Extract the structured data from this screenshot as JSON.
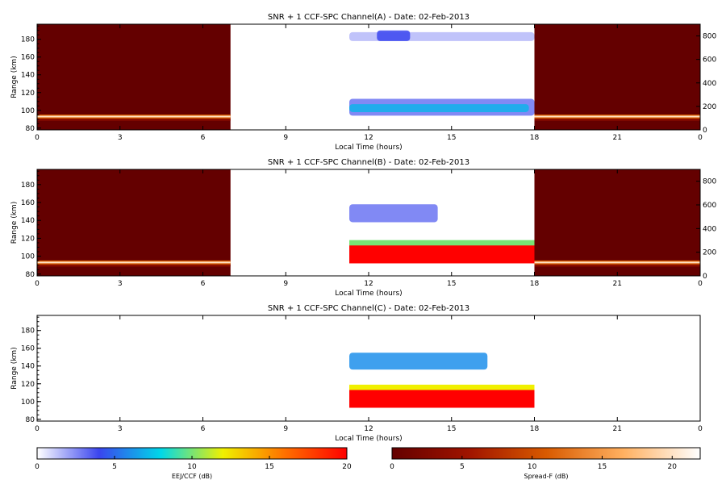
{
  "chart_data": [
    {
      "type": "heatmap",
      "title": "SNR + 1 CCF-SPC Channel(A) - Date: 02-Feb-2013",
      "xlabel": "Local Time (hours)",
      "ylabel": "Range (km)",
      "xlim": [
        0,
        24
      ],
      "ylim": [
        78,
        197
      ],
      "x_ticks": [
        "0",
        "3",
        "6",
        "9",
        "12",
        "15",
        "18",
        "21",
        "0"
      ],
      "y_ticks": [
        80,
        100,
        120,
        140,
        160,
        180
      ],
      "y2lim": [
        0,
        900
      ],
      "y2_ticks": [
        0,
        200,
        400,
        600,
        800
      ],
      "night_spreadF": {
        "colormap": "Spread-F",
        "background_db": 0,
        "bright_layer_km": 93,
        "segments_hours": [
          [
            0,
            7
          ],
          [
            18,
            24
          ]
        ]
      },
      "day_eej": {
        "colormap": "EEJ/CCF",
        "hours": [
          11.3,
          18
        ],
        "features": [
          {
            "name": "upper-echo",
            "x": [
              11.3,
              18
            ],
            "range_km": [
              178,
              188
            ],
            "db": 1.5
          },
          {
            "name": "upper-echo-peak",
            "x": [
              12.3,
              13.5
            ],
            "range_km": [
              178,
              190
            ],
            "db": 4
          },
          {
            "name": "lower-layer",
            "x": [
              11.3,
              18
            ],
            "range_km": [
              94,
              113
            ],
            "db": 3
          },
          {
            "name": "lower-layer-core",
            "x": [
              11.3,
              17.8
            ],
            "range_km": [
              98,
              107
            ],
            "db": 7
          }
        ]
      },
      "no_data_hours": [
        7,
        11.3
      ]
    },
    {
      "type": "heatmap",
      "title": "SNR + 1 CCF-SPC Channel(B) - Date: 02-Feb-2013",
      "xlabel": "Local Time (hours)",
      "ylabel": "Range (km)",
      "xlim": [
        0,
        24
      ],
      "ylim": [
        78,
        197
      ],
      "x_ticks": [
        "0",
        "3",
        "6",
        "9",
        "12",
        "15",
        "18",
        "21",
        "0"
      ],
      "y_ticks": [
        80,
        100,
        120,
        140,
        160,
        180
      ],
      "y2lim": [
        0,
        900
      ],
      "y2_ticks": [
        0,
        200,
        400,
        600,
        800
      ],
      "night_spreadF": {
        "colormap": "Spread-F",
        "background_db": 0,
        "bright_layer_km": 93,
        "segments_hours": [
          [
            0,
            7
          ],
          [
            18,
            24
          ]
        ]
      },
      "day_eej": {
        "colormap": "EEJ/CCF",
        "hours": [
          11.3,
          18
        ],
        "features": [
          {
            "name": "upper-echo",
            "x": [
              11.3,
              14.5
            ],
            "range_km": [
              138,
              158
            ],
            "db": 3
          },
          {
            "name": "lower-layer",
            "x": [
              11.3,
              18
            ],
            "range_km": [
              92,
              115
            ],
            "db": 20
          },
          {
            "name": "layer-edge",
            "x": [
              11.3,
              18
            ],
            "range_km": [
              112,
              118
            ],
            "db": 10
          }
        ]
      },
      "no_data_hours": [
        7,
        11.3
      ]
    },
    {
      "type": "heatmap",
      "title": "SNR + 1 CCF-SPC Channel(C) - Date: 02-Feb-2013",
      "xlabel": "Local Time (hours)",
      "ylabel": "Range (km)",
      "xlim": [
        0,
        24
      ],
      "ylim": [
        78,
        197
      ],
      "x_ticks": [
        "0",
        "3",
        "6",
        "9",
        "12",
        "15",
        "18",
        "21",
        "0"
      ],
      "y_ticks": [
        80,
        100,
        120,
        140,
        160,
        180
      ],
      "day_eej": {
        "colormap": "EEJ/CCF",
        "hours": [
          11.3,
          18
        ],
        "features": [
          {
            "name": "upper-echo",
            "x": [
              11.3,
              16.3
            ],
            "range_km": [
              136,
              155
            ],
            "db": 6
          },
          {
            "name": "lower-layer",
            "x": [
              11.3,
              18
            ],
            "range_km": [
              93,
              117
            ],
            "db": 20
          },
          {
            "name": "layer-edge",
            "x": [
              11.3,
              18
            ],
            "range_km": [
              113,
              119
            ],
            "db": 12
          }
        ]
      }
    }
  ],
  "colorbars": [
    {
      "label": "EEJ/CCF (dB)",
      "range": [
        0,
        20
      ],
      "ticks": [
        "0",
        "5",
        "10",
        "15",
        "20"
      ],
      "colors": [
        "#ffffff",
        "#3a45ee",
        "#00d8e8",
        "#f0f000",
        "#ff7000",
        "#ff0000"
      ]
    },
    {
      "label": "Spread-F (dB)",
      "range": [
        0,
        22
      ],
      "ticks": [
        "0",
        "5",
        "10",
        "15",
        "20"
      ],
      "colors": [
        "#640000",
        "#a01400",
        "#d85a00",
        "#ffb060",
        "#ffffff"
      ]
    }
  ]
}
